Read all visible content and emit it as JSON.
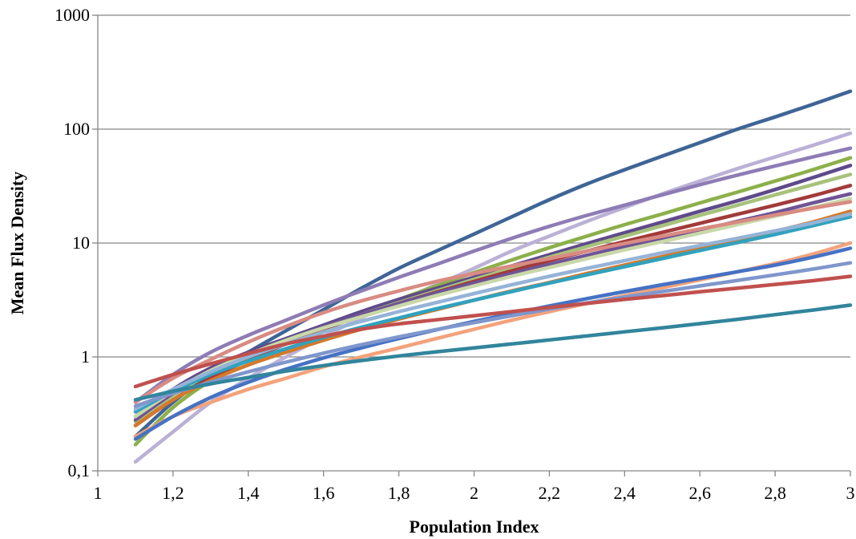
{
  "chart_data": {
    "type": "line",
    "xlabel": "Population Index",
    "ylabel": "Mean Flux Density",
    "xlim": [
      1,
      3
    ],
    "ylim": [
      0.1,
      1000
    ],
    "yscale": "log",
    "grid": "horizontal major gridlines",
    "legend": "none",
    "x_ticks": [
      "1",
      "1,2",
      "1,4",
      "1,6",
      "1,8",
      "2",
      "2,2",
      "2,4",
      "2,6",
      "2,8",
      "3"
    ],
    "y_ticks": [
      "0,1",
      "1",
      "10",
      "100",
      "1000"
    ],
    "x": [
      1.1,
      1.2,
      1.3,
      1.4,
      1.5,
      1.6,
      1.7,
      1.8,
      1.9,
      2.0,
      2.1,
      2.2,
      2.3,
      2.4,
      2.5,
      2.6,
      2.7,
      2.8,
      2.9,
      3.0
    ],
    "series": [
      {
        "color": "#3F6597",
        "values": [
          0.2,
          0.4,
          0.7,
          1.1,
          1.7,
          2.6,
          4.0,
          6.0,
          8.5,
          12.0,
          17.0,
          24.0,
          33.0,
          44.0,
          58.0,
          76.0,
          100.0,
          128.0,
          165.0,
          215.0
        ]
      },
      {
        "color": "#BBB1D6",
        "values": [
          0.12,
          0.22,
          0.4,
          0.65,
          1.0,
          1.5,
          2.2,
          3.1,
          4.3,
          6.0,
          8.5,
          11.5,
          15.5,
          20.5,
          27.0,
          35.0,
          45.0,
          57.0,
          72.0,
          92.0
        ]
      },
      {
        "color": "#8E7CB5",
        "values": [
          0.4,
          0.7,
          1.1,
          1.55,
          2.1,
          2.85,
          3.8,
          5.0,
          6.5,
          8.5,
          11.0,
          14.0,
          17.5,
          21.5,
          26.5,
          32.5,
          39.5,
          47.5,
          57.0,
          68.0
        ]
      },
      {
        "color": "#8CB04A",
        "values": [
          0.17,
          0.36,
          0.62,
          0.95,
          1.35,
          1.85,
          2.45,
          3.2,
          4.2,
          5.5,
          7.1,
          9.1,
          11.5,
          14.5,
          18.0,
          22.5,
          28.0,
          35.0,
          44.0,
          56.0
        ]
      },
      {
        "color": "#5F4A8B",
        "values": [
          0.3,
          0.52,
          0.8,
          1.1,
          1.45,
          1.9,
          2.5,
          3.2,
          4.0,
          5.0,
          6.3,
          7.9,
          9.9,
          12.3,
          15.3,
          19.0,
          23.5,
          29.5,
          37.5,
          48.0
        ]
      },
      {
        "color": "#A7C27A",
        "values": [
          0.27,
          0.46,
          0.72,
          1.0,
          1.35,
          1.8,
          2.35,
          3.0,
          3.8,
          4.8,
          6.0,
          7.5,
          9.3,
          11.5,
          14.2,
          17.5,
          21.5,
          26.5,
          32.5,
          40.0
        ]
      },
      {
        "color": "#A23A3A",
        "values": [
          0.25,
          0.42,
          0.65,
          0.95,
          1.3,
          1.75,
          2.3,
          2.95,
          3.7,
          4.6,
          5.7,
          7.0,
          8.5,
          10.3,
          12.4,
          14.9,
          17.9,
          21.5,
          26.0,
          32.0
        ]
      },
      {
        "color": "#6F5496",
        "values": [
          0.28,
          0.48,
          0.74,
          1.05,
          1.4,
          1.85,
          2.35,
          2.95,
          3.65,
          4.45,
          5.4,
          6.5,
          7.8,
          9.3,
          11.0,
          13.0,
          15.5,
          18.5,
          22.5,
          27.0
        ]
      },
      {
        "color": "#C9D8A8",
        "values": [
          0.3,
          0.5,
          0.76,
          1.05,
          1.4,
          1.8,
          2.25,
          2.8,
          3.45,
          4.2,
          5.1,
          6.1,
          7.3,
          8.7,
          10.3,
          12.2,
          14.5,
          17.2,
          20.5,
          24.5
        ]
      },
      {
        "color": "#D98B82",
        "values": [
          0.4,
          0.65,
          0.95,
          1.35,
          1.85,
          2.45,
          3.1,
          3.8,
          4.6,
          5.4,
          6.3,
          7.3,
          8.5,
          9.9,
          11.5,
          13.3,
          15.3,
          17.6,
          20.2,
          23.0
        ]
      },
      {
        "color": "#D5792A",
        "values": [
          0.25,
          0.42,
          0.62,
          0.85,
          1.1,
          1.4,
          1.75,
          2.15,
          2.6,
          3.15,
          3.8,
          4.5,
          5.4,
          6.4,
          7.6,
          9.0,
          10.7,
          12.7,
          15.3,
          19.0
        ]
      },
      {
        "color": "#31A2BE",
        "values": [
          0.33,
          0.5,
          0.7,
          0.92,
          1.18,
          1.48,
          1.82,
          2.2,
          2.65,
          3.15,
          3.75,
          4.45,
          5.25,
          6.2,
          7.3,
          8.6,
          10.1,
          11.9,
          14.2,
          17.0
        ]
      },
      {
        "color": "#95B3D7",
        "values": [
          0.35,
          0.52,
          0.74,
          1.0,
          1.3,
          1.65,
          2.05,
          2.5,
          3.0,
          3.6,
          4.3,
          5.1,
          6.0,
          7.0,
          8.2,
          9.5,
          11.0,
          12.8,
          15.0,
          18.0
        ]
      },
      {
        "color": "#F4A27B",
        "values": [
          0.2,
          0.3,
          0.4,
          0.52,
          0.65,
          0.82,
          1.0,
          1.2,
          1.45,
          1.75,
          2.1,
          2.5,
          2.95,
          3.45,
          4.05,
          4.75,
          5.6,
          6.6,
          8.0,
          10.0
        ]
      },
      {
        "color": "#4572C4",
        "values": [
          0.19,
          0.3,
          0.44,
          0.6,
          0.78,
          0.98,
          1.2,
          1.45,
          1.73,
          2.05,
          2.4,
          2.8,
          3.25,
          3.75,
          4.3,
          4.9,
          5.6,
          6.4,
          7.5,
          9.0
        ]
      },
      {
        "color": "#7F97CC",
        "values": [
          0.37,
          0.48,
          0.6,
          0.74,
          0.9,
          1.08,
          1.28,
          1.5,
          1.74,
          2.0,
          2.3,
          2.63,
          2.98,
          3.35,
          3.75,
          4.2,
          4.7,
          5.25,
          5.9,
          6.7
        ]
      },
      {
        "color": "#C0504D",
        "values": [
          0.55,
          0.7,
          0.87,
          1.07,
          1.3,
          1.52,
          1.75,
          1.95,
          2.12,
          2.3,
          2.5,
          2.72,
          2.95,
          3.2,
          3.45,
          3.73,
          4.02,
          4.33,
          4.67,
          5.1
        ]
      },
      {
        "color": "#31859C",
        "values": [
          0.42,
          0.5,
          0.58,
          0.66,
          0.75,
          0.84,
          0.93,
          1.02,
          1.11,
          1.2,
          1.3,
          1.41,
          1.53,
          1.66,
          1.8,
          1.96,
          2.14,
          2.35,
          2.58,
          2.85
        ]
      }
    ]
  }
}
